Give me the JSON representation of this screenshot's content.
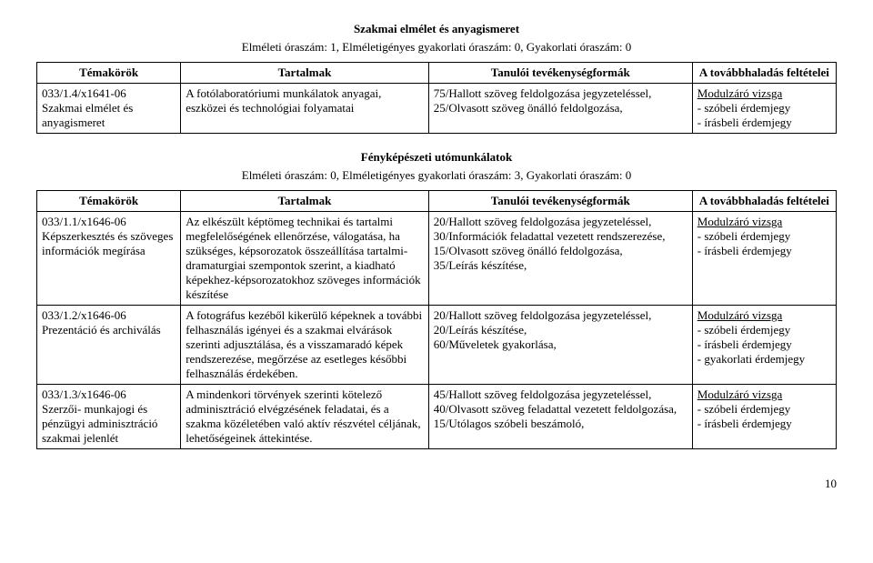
{
  "section1": {
    "title": "Szakmai elmélet és anyagismeret",
    "subtitle": "Elméleti óraszám: 1, Elméletigényes gyakorlati óraszám: 0, Gyakorlati óraszám: 0",
    "headers": {
      "h1": "Témakörök",
      "h2": "Tartalmak",
      "h3": "Tanulói tevékenységformák",
      "h4": "A továbbhaladás feltételei"
    },
    "row1": {
      "c1": "033/1.4/x1641-06\nSzakmai elmélet és anyagismeret",
      "c2": "A fotólaboratóriumi munkálatok anyagai, eszközei és technológiai folyamatai",
      "c3": "75/Hallott szöveg feldolgozása jegyzeteléssel,\n25/Olvasott szöveg önálló feldolgozása,",
      "c4_u": "Modulzáró vizsga",
      "c4_rest": "-   szóbeli érdemjegy\n-   írásbeli érdemjegy"
    }
  },
  "section2": {
    "title": "Fényképészeti utómunkálatok",
    "subtitle": "Elméleti óraszám: 0, Elméletigényes gyakorlati óraszám: 3, Gyakorlati óraszám: 0",
    "headers": {
      "h1": "Témakörök",
      "h2": "Tartalmak",
      "h3": "Tanulói tevékenységformák",
      "h4": "A továbbhaladás feltételei"
    },
    "row1": {
      "c1": "033/1.1/x1646-06\nKépszerkesztés és szöveges információk megírása",
      "c2": "Az elkészült képtömeg technikai és tartalmi megfelelőségének ellenőrzése, válogatása, ha szükséges, képsorozatok összeállítása tartalmi-dramaturgiai szempontok szerint, a kiadható képekhez-képsorozatokhoz szöveges információk készítése",
      "c3": "20/Hallott szöveg feldolgozása jegyzeteléssel,\n30/Információk feladattal vezetett rendszerezése,\n15/Olvasott szöveg önálló feldolgozása,\n35/Leírás készítése,",
      "c4_u": "Modulzáró vizsga",
      "c4_rest": "- szóbeli érdemjegy\n- írásbeli érdemjegy"
    },
    "row2": {
      "c1": "033/1.2/x1646-06\nPrezentáció és archiválás",
      "c2": "A fotográfus kezéből kikerülő képeknek a további felhasználás igényei és a szakmai elvárások szerinti adjusztálása, és a visszamaradó képek rendszerezése, megőrzése az esetleges későbbi felhasználás érdekében.",
      "c3": "20/Hallott szöveg feldolgozása jegyzeteléssel,\n20/Leírás készítése,\n60/Műveletek gyakorlása,",
      "c4_u": "Modulzáró vizsga",
      "c4_rest": "- szóbeli érdemjegy\n- írásbeli érdemjegy\n- gyakorlati érdemjegy"
    },
    "row3": {
      "c1": "033/1.3/x1646-06\nSzerzői- munkajogi és pénzügyi adminisztráció szakmai jelenlét",
      "c2": "A mindenkori törvények szerinti kötelező adminisztráció elvégzésének feladatai, és a szakma közéletében való aktív részvétel céljának, lehetőségeinek áttekintése.",
      "c3": "45/Hallott szöveg feldolgozása jegyzeteléssel,\n40/Olvasott szöveg feladattal vezetett feldolgozása,\n15/Utólagos szóbeli beszámoló,",
      "c4_u": "Modulzáró vizsga",
      "c4_rest": "- szóbeli érdemjegy\n- írásbeli érdemjegy"
    }
  },
  "page_number": "10"
}
